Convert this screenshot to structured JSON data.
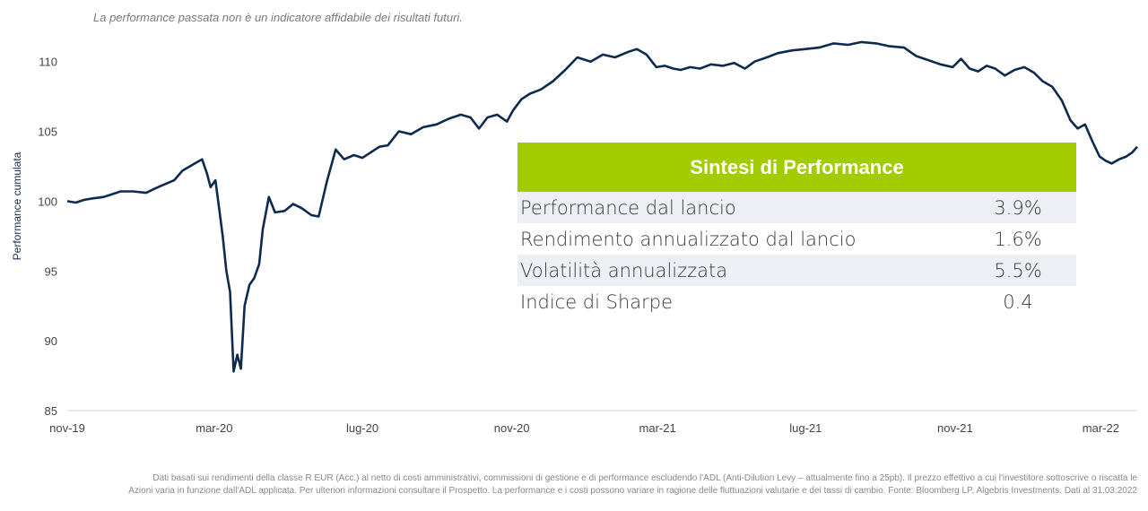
{
  "disclaimer": "La performance passata non è un indicatore affidabile dei risultati futuri.",
  "chart_data": {
    "type": "line",
    "ylabel": "Performance cumulata",
    "xlabel": "",
    "ylim": [
      85,
      112
    ],
    "yticks": [
      85,
      90,
      95,
      100,
      105,
      110
    ],
    "xlim": [
      "2019-11-01",
      "2022-03-31"
    ],
    "xticks": [
      {
        "date": "2019-11-01",
        "label": "nov-19"
      },
      {
        "date": "2020-03-01",
        "label": "mar-20"
      },
      {
        "date": "2020-07-01",
        "label": "lug-20"
      },
      {
        "date": "2020-11-01",
        "label": "nov-20"
      },
      {
        "date": "2021-03-01",
        "label": "mar-21"
      },
      {
        "date": "2021-07-01",
        "label": "lug-21"
      },
      {
        "date": "2021-11-01",
        "label": "nov-21"
      },
      {
        "date": "2022-03-01",
        "label": "mar-22"
      }
    ],
    "grid": false,
    "line_color": "#0f2a4f",
    "series": [
      {
        "name": "",
        "points": [
          [
            "2019-11-01",
            100.0
          ],
          [
            "2019-11-08",
            99.9
          ],
          [
            "2019-11-15",
            100.1
          ],
          [
            "2019-11-22",
            100.2
          ],
          [
            "2019-12-01",
            100.3
          ],
          [
            "2019-12-08",
            100.5
          ],
          [
            "2019-12-15",
            100.7
          ],
          [
            "2019-12-25",
            100.7
          ],
          [
            "2020-01-05",
            100.6
          ],
          [
            "2020-01-12",
            100.9
          ],
          [
            "2020-01-20",
            101.2
          ],
          [
            "2020-01-28",
            101.5
          ],
          [
            "2020-02-04",
            102.2
          ],
          [
            "2020-02-10",
            102.5
          ],
          [
            "2020-02-16",
            102.8
          ],
          [
            "2020-02-20",
            103.0
          ],
          [
            "2020-02-24",
            102.0
          ],
          [
            "2020-02-27",
            101.0
          ],
          [
            "2020-03-02",
            101.5
          ],
          [
            "2020-03-05",
            99.5
          ],
          [
            "2020-03-08",
            97.5
          ],
          [
            "2020-03-11",
            95.0
          ],
          [
            "2020-03-14",
            93.5
          ],
          [
            "2020-03-17",
            87.8
          ],
          [
            "2020-03-20",
            89.0
          ],
          [
            "2020-03-23",
            88.0
          ],
          [
            "2020-03-26",
            92.5
          ],
          [
            "2020-03-30",
            94.0
          ],
          [
            "2020-04-03",
            94.5
          ],
          [
            "2020-04-07",
            95.5
          ],
          [
            "2020-04-10",
            98.0
          ],
          [
            "2020-04-15",
            100.3
          ],
          [
            "2020-04-20",
            99.2
          ],
          [
            "2020-04-28",
            99.3
          ],
          [
            "2020-05-05",
            99.8
          ],
          [
            "2020-05-12",
            99.5
          ],
          [
            "2020-05-20",
            99.0
          ],
          [
            "2020-05-26",
            98.9
          ],
          [
            "2020-06-02",
            101.5
          ],
          [
            "2020-06-09",
            103.7
          ],
          [
            "2020-06-16",
            103.0
          ],
          [
            "2020-06-24",
            103.3
          ],
          [
            "2020-07-01",
            103.1
          ],
          [
            "2020-07-08",
            103.5
          ],
          [
            "2020-07-15",
            103.9
          ],
          [
            "2020-07-22",
            104.0
          ],
          [
            "2020-07-31",
            105.0
          ],
          [
            "2020-08-10",
            104.8
          ],
          [
            "2020-08-20",
            105.3
          ],
          [
            "2020-08-31",
            105.5
          ],
          [
            "2020-09-10",
            105.9
          ],
          [
            "2020-09-20",
            106.2
          ],
          [
            "2020-09-28",
            106.0
          ],
          [
            "2020-10-05",
            105.2
          ],
          [
            "2020-10-12",
            106.0
          ],
          [
            "2020-10-20",
            106.2
          ],
          [
            "2020-10-28",
            105.7
          ],
          [
            "2020-11-02",
            106.5
          ],
          [
            "2020-11-09",
            107.3
          ],
          [
            "2020-11-16",
            107.7
          ],
          [
            "2020-11-25",
            108.0
          ],
          [
            "2020-12-05",
            108.6
          ],
          [
            "2020-12-15",
            109.4
          ],
          [
            "2020-12-25",
            110.3
          ],
          [
            "2021-01-05",
            110.0
          ],
          [
            "2021-01-15",
            110.5
          ],
          [
            "2021-01-25",
            110.3
          ],
          [
            "2021-02-05",
            110.7
          ],
          [
            "2021-02-12",
            110.9
          ],
          [
            "2021-02-20",
            110.5
          ],
          [
            "2021-02-28",
            109.6
          ],
          [
            "2021-03-07",
            109.7
          ],
          [
            "2021-03-14",
            109.5
          ],
          [
            "2021-03-20",
            109.4
          ],
          [
            "2021-03-28",
            109.6
          ],
          [
            "2021-04-05",
            109.5
          ],
          [
            "2021-04-14",
            109.8
          ],
          [
            "2021-04-24",
            109.7
          ],
          [
            "2021-05-03",
            109.9
          ],
          [
            "2021-05-12",
            109.5
          ],
          [
            "2021-05-20",
            110.0
          ],
          [
            "2021-05-30",
            110.3
          ],
          [
            "2021-06-08",
            110.6
          ],
          [
            "2021-06-20",
            110.8
          ],
          [
            "2021-07-01",
            110.9
          ],
          [
            "2021-07-12",
            111.0
          ],
          [
            "2021-07-24",
            111.3
          ],
          [
            "2021-08-05",
            111.2
          ],
          [
            "2021-08-16",
            111.4
          ],
          [
            "2021-08-28",
            111.3
          ],
          [
            "2021-09-08",
            111.1
          ],
          [
            "2021-09-20",
            111.0
          ],
          [
            "2021-09-30",
            110.4
          ],
          [
            "2021-10-10",
            110.1
          ],
          [
            "2021-10-20",
            109.8
          ],
          [
            "2021-10-30",
            109.6
          ],
          [
            "2021-11-06",
            110.2
          ],
          [
            "2021-11-13",
            109.5
          ],
          [
            "2021-11-20",
            109.3
          ],
          [
            "2021-11-27",
            109.7
          ],
          [
            "2021-12-04",
            109.5
          ],
          [
            "2021-12-12",
            109.0
          ],
          [
            "2021-12-20",
            109.4
          ],
          [
            "2021-12-28",
            109.6
          ],
          [
            "2022-01-05",
            109.2
          ],
          [
            "2022-01-12",
            108.6
          ],
          [
            "2022-01-20",
            108.2
          ],
          [
            "2022-01-28",
            107.2
          ],
          [
            "2022-02-04",
            105.8
          ],
          [
            "2022-02-10",
            105.2
          ],
          [
            "2022-02-16",
            105.5
          ],
          [
            "2022-02-22",
            104.3
          ],
          [
            "2022-02-28",
            103.2
          ],
          [
            "2022-03-05",
            102.9
          ],
          [
            "2022-03-10",
            102.7
          ],
          [
            "2022-03-16",
            103.0
          ],
          [
            "2022-03-22",
            103.2
          ],
          [
            "2022-03-27",
            103.5
          ],
          [
            "2022-03-31",
            103.9
          ]
        ]
      }
    ]
  },
  "summary": {
    "title": "Sintesi di Performance",
    "rows": [
      {
        "label": "Performance dal lancio",
        "value": "3.9%"
      },
      {
        "label": "Rendimento annualizzato dal lancio",
        "value": "1.6%"
      },
      {
        "label": "Volatilità annualizzata",
        "value": "5.5%"
      },
      {
        "label": "Indice di Sharpe",
        "value": "0.4"
      }
    ],
    "header_color": "#a3cc00",
    "shade_color": "#eeeff5"
  },
  "footnote": {
    "line1": "Dati basati sui rendimenti della classe R EUR (Acc.) al netto di costi amministrativi, commissioni di gestione e di performance escludendo l'ADL (Anti-Dilution Levy – attualmente fino a 25pb). Il prezzo effettivo a cui l'investitore sottoscrive o riscatta le",
    "line2": "Azioni varia in funzione dall'ADL applicata. Per ulteriori informazioni consultare il Prospetto. La performance e i costi possono variare in ragione delle fluttuazioni valutarie e dei tassi di cambio. Fonte: Bloomberg LP, Algebris Investments. Dati al 31.03.2022"
  }
}
